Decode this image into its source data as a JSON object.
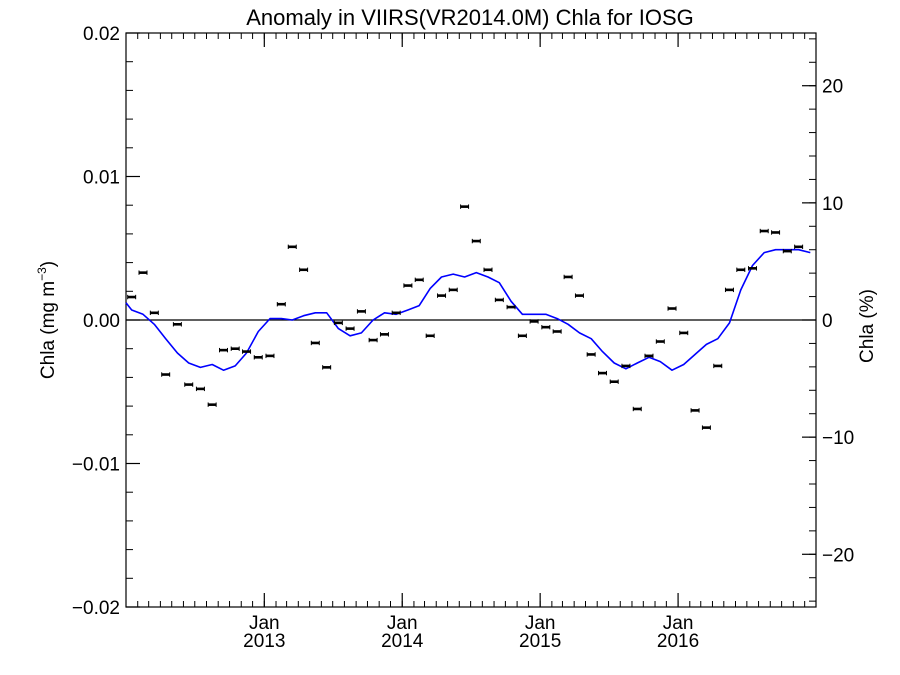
{
  "chart_data": {
    "type": "scatter",
    "title": "Anomaly in VIIRS(VR2014.0M) Chla for IOSG",
    "ylabel": "Chla (mg m",
    "ylabel_sup": "−3",
    "ylabel_close": ")",
    "y2label": "Chla (%)",
    "ylim": [
      -0.02,
      0.02
    ],
    "y2lim": [
      -24.5,
      24.5
    ],
    "xlim": [
      "2012-01-01",
      "2016-12-31"
    ],
    "grid": false,
    "zero_line": true,
    "y_ticks": [
      {
        "value": 0.02,
        "label": "0.02"
      },
      {
        "value": 0.01,
        "label": "0.01"
      },
      {
        "value": 0.0,
        "label": "0.00"
      },
      {
        "value": -0.01,
        "label": "−0.01"
      },
      {
        "value": -0.02,
        "label": "−0.02"
      }
    ],
    "y2_ticks": [
      {
        "value": 20,
        "label": "20"
      },
      {
        "value": 10,
        "label": "10"
      },
      {
        "value": 0,
        "label": "0"
      },
      {
        "value": -10,
        "label": "−10"
      },
      {
        "value": -20,
        "label": "−20"
      }
    ],
    "x_ticks": [
      {
        "date": "2013-01-01",
        "month": "Jan",
        "year": "2013"
      },
      {
        "date": "2014-01-01",
        "month": "Jan",
        "year": "2014"
      },
      {
        "date": "2015-01-01",
        "month": "Jan",
        "year": "2015"
      },
      {
        "date": "2016-01-01",
        "month": "Jan",
        "year": "2016"
      }
    ],
    "series": [
      {
        "type": "scatter",
        "color": "#000000",
        "errorbars": true,
        "points": [
          {
            "x": "2012-01-16",
            "y": 0.0016
          },
          {
            "x": "2012-02-15",
            "y": 0.0033
          },
          {
            "x": "2012-03-16",
            "y": 0.0005
          },
          {
            "x": "2012-04-15",
            "y": -0.0038
          },
          {
            "x": "2012-05-16",
            "y": -0.0003
          },
          {
            "x": "2012-06-15",
            "y": -0.0045
          },
          {
            "x": "2012-07-16",
            "y": -0.0048
          },
          {
            "x": "2012-08-16",
            "y": -0.0059
          },
          {
            "x": "2012-09-15",
            "y": -0.0021
          },
          {
            "x": "2012-10-16",
            "y": -0.002
          },
          {
            "x": "2012-11-15",
            "y": -0.0022
          },
          {
            "x": "2012-12-16",
            "y": -0.0026
          },
          {
            "x": "2013-01-16",
            "y": -0.0025
          },
          {
            "x": "2013-02-15",
            "y": 0.0011
          },
          {
            "x": "2013-03-16",
            "y": 0.0051
          },
          {
            "x": "2013-04-15",
            "y": 0.0035
          },
          {
            "x": "2013-05-16",
            "y": -0.0016
          },
          {
            "x": "2013-06-15",
            "y": -0.0033
          },
          {
            "x": "2013-07-16",
            "y": -0.0002
          },
          {
            "x": "2013-08-16",
            "y": -0.0006
          },
          {
            "x": "2013-09-15",
            "y": 0.0006
          },
          {
            "x": "2013-10-16",
            "y": -0.0014
          },
          {
            "x": "2013-11-15",
            "y": -0.001
          },
          {
            "x": "2013-12-16",
            "y": 0.0005
          },
          {
            "x": "2014-01-16",
            "y": 0.0024
          },
          {
            "x": "2014-02-15",
            "y": 0.0028
          },
          {
            "x": "2014-03-16",
            "y": -0.0011
          },
          {
            "x": "2014-04-15",
            "y": 0.0017
          },
          {
            "x": "2014-05-16",
            "y": 0.0021
          },
          {
            "x": "2014-06-15",
            "y": 0.0079
          },
          {
            "x": "2014-07-16",
            "y": 0.0055
          },
          {
            "x": "2014-08-16",
            "y": 0.0035
          },
          {
            "x": "2014-09-15",
            "y": 0.0014
          },
          {
            "x": "2014-10-16",
            "y": 0.0009
          },
          {
            "x": "2014-11-15",
            "y": -0.0011
          },
          {
            "x": "2014-12-16",
            "y": -0.0001
          },
          {
            "x": "2015-01-16",
            "y": -0.0005
          },
          {
            "x": "2015-02-15",
            "y": -0.0008
          },
          {
            "x": "2015-03-16",
            "y": 0.003
          },
          {
            "x": "2015-04-15",
            "y": 0.0017
          },
          {
            "x": "2015-05-16",
            "y": -0.0024
          },
          {
            "x": "2015-06-15",
            "y": -0.0037
          },
          {
            "x": "2015-07-16",
            "y": -0.0043
          },
          {
            "x": "2015-08-16",
            "y": -0.0032
          },
          {
            "x": "2015-09-15",
            "y": -0.0062
          },
          {
            "x": "2015-10-16",
            "y": -0.0025
          },
          {
            "x": "2015-11-15",
            "y": -0.0015
          },
          {
            "x": "2015-12-16",
            "y": 0.0008
          },
          {
            "x": "2016-01-16",
            "y": -0.0009
          },
          {
            "x": "2016-02-15",
            "y": -0.0063
          },
          {
            "x": "2016-03-16",
            "y": -0.0075
          },
          {
            "x": "2016-04-15",
            "y": -0.0032
          },
          {
            "x": "2016-05-16",
            "y": 0.0021
          },
          {
            "x": "2016-06-15",
            "y": 0.0035
          },
          {
            "x": "2016-07-16",
            "y": 0.0036
          },
          {
            "x": "2016-08-16",
            "y": 0.0062
          },
          {
            "x": "2016-09-15",
            "y": 0.0061
          },
          {
            "x": "2016-10-16",
            "y": 0.0048
          },
          {
            "x": "2016-11-15",
            "y": 0.0051
          }
        ]
      },
      {
        "type": "line",
        "color": "#0000ff",
        "points": [
          {
            "x": "2012-01-01",
            "y": 0.0012
          },
          {
            "x": "2012-01-16",
            "y": 0.0007
          },
          {
            "x": "2012-02-15",
            "y": 0.0004
          },
          {
            "x": "2012-03-16",
            "y": -0.0003
          },
          {
            "x": "2012-04-15",
            "y": -0.0013
          },
          {
            "x": "2012-05-16",
            "y": -0.0023
          },
          {
            "x": "2012-06-15",
            "y": -0.003
          },
          {
            "x": "2012-07-16",
            "y": -0.0033
          },
          {
            "x": "2012-08-16",
            "y": -0.0031
          },
          {
            "x": "2012-09-15",
            "y": -0.0035
          },
          {
            "x": "2012-10-16",
            "y": -0.0032
          },
          {
            "x": "2012-11-15",
            "y": -0.0023
          },
          {
            "x": "2012-12-16",
            "y": -0.0008
          },
          {
            "x": "2013-01-16",
            "y": 0.0001
          },
          {
            "x": "2013-02-15",
            "y": 0.0001
          },
          {
            "x": "2013-03-16",
            "y": 0.0
          },
          {
            "x": "2013-04-15",
            "y": 0.0003
          },
          {
            "x": "2013-05-16",
            "y": 0.0005
          },
          {
            "x": "2013-06-15",
            "y": 0.0005
          },
          {
            "x": "2013-07-16",
            "y": -0.0006
          },
          {
            "x": "2013-08-16",
            "y": -0.0011
          },
          {
            "x": "2013-09-15",
            "y": -0.0009
          },
          {
            "x": "2013-10-16",
            "y": 0.0
          },
          {
            "x": "2013-11-15",
            "y": 0.0005
          },
          {
            "x": "2013-12-16",
            "y": 0.0004
          },
          {
            "x": "2014-01-16",
            "y": 0.0007
          },
          {
            "x": "2014-02-15",
            "y": 0.001
          },
          {
            "x": "2014-03-16",
            "y": 0.0022
          },
          {
            "x": "2014-04-15",
            "y": 0.003
          },
          {
            "x": "2014-05-16",
            "y": 0.0032
          },
          {
            "x": "2014-06-15",
            "y": 0.003
          },
          {
            "x": "2014-07-16",
            "y": 0.0033
          },
          {
            "x": "2014-08-16",
            "y": 0.003
          },
          {
            "x": "2014-09-15",
            "y": 0.0026
          },
          {
            "x": "2014-10-16",
            "y": 0.0013
          },
          {
            "x": "2014-11-15",
            "y": 0.0004
          },
          {
            "x": "2014-12-16",
            "y": 0.0004
          },
          {
            "x": "2015-01-16",
            "y": 0.0004
          },
          {
            "x": "2015-02-15",
            "y": 0.0001
          },
          {
            "x": "2015-03-16",
            "y": -0.0003
          },
          {
            "x": "2015-04-15",
            "y": -0.0009
          },
          {
            "x": "2015-05-16",
            "y": -0.0013
          },
          {
            "x": "2015-06-15",
            "y": -0.0022
          },
          {
            "x": "2015-07-16",
            "y": -0.003
          },
          {
            "x": "2015-08-16",
            "y": -0.0034
          },
          {
            "x": "2015-09-15",
            "y": -0.003
          },
          {
            "x": "2015-10-16",
            "y": -0.0026
          },
          {
            "x": "2015-11-15",
            "y": -0.0029
          },
          {
            "x": "2015-12-16",
            "y": -0.0035
          },
          {
            "x": "2016-01-16",
            "y": -0.0031
          },
          {
            "x": "2016-02-15",
            "y": -0.0024
          },
          {
            "x": "2016-03-16",
            "y": -0.0017
          },
          {
            "x": "2016-04-15",
            "y": -0.0013
          },
          {
            "x": "2016-05-16",
            "y": -0.0002
          },
          {
            "x": "2016-06-15",
            "y": 0.0021
          },
          {
            "x": "2016-07-16",
            "y": 0.0038
          },
          {
            "x": "2016-08-16",
            "y": 0.0047
          },
          {
            "x": "2016-09-15",
            "y": 0.0049
          },
          {
            "x": "2016-10-16",
            "y": 0.0049
          },
          {
            "x": "2016-11-15",
            "y": 0.0049
          },
          {
            "x": "2016-12-16",
            "y": 0.0047
          }
        ]
      }
    ]
  }
}
